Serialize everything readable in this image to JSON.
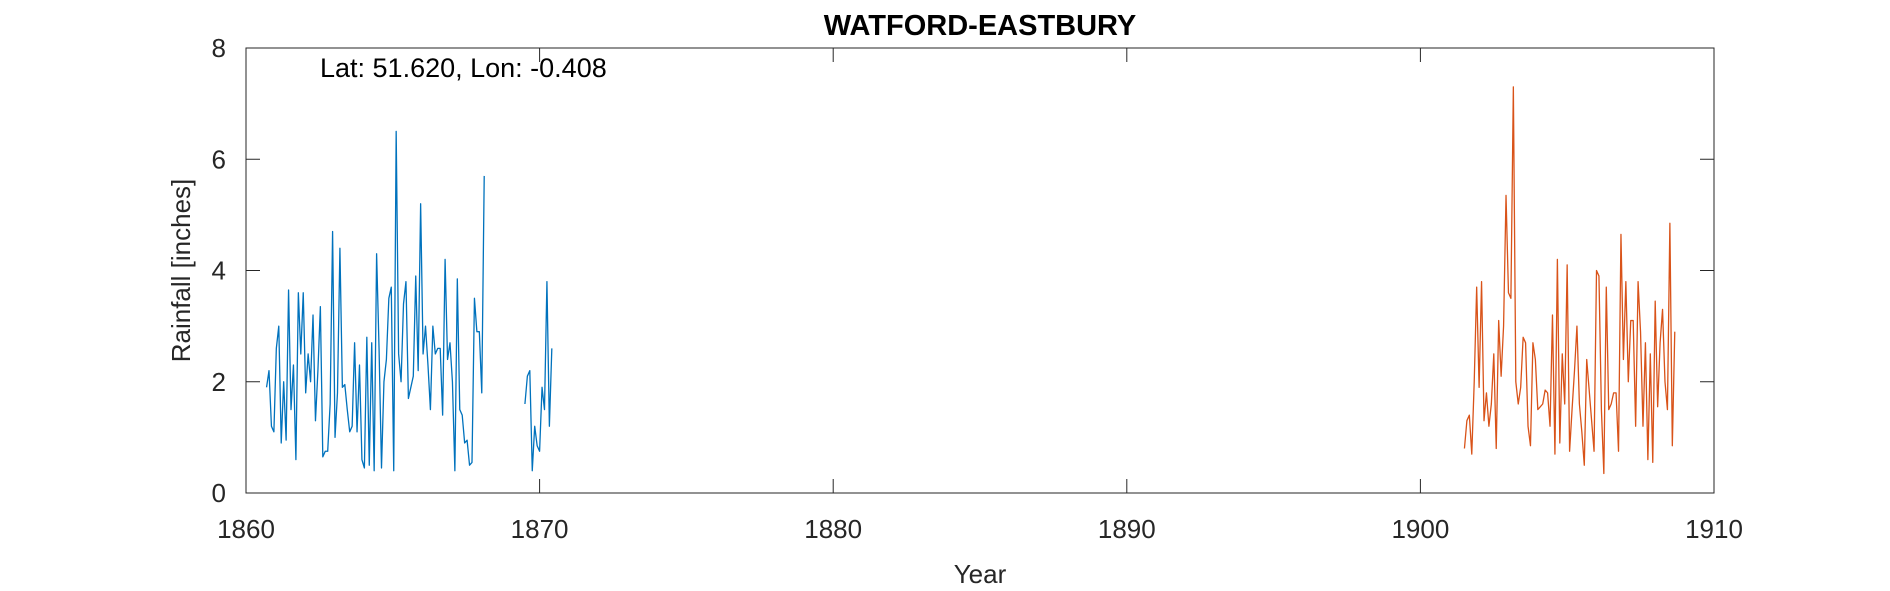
{
  "chart_data": {
    "type": "line",
    "title": "WATFORD-EASTBURY",
    "xlabel": "Year",
    "ylabel": "Rainfall [inches]",
    "annotation": "Lat: 51.620, Lon: -0.408",
    "xlim": [
      1860,
      1910
    ],
    "ylim": [
      0,
      8
    ],
    "xticks": [
      1860,
      1870,
      1880,
      1890,
      1900,
      1910
    ],
    "yticks": [
      0,
      2,
      4,
      6,
      8
    ],
    "grid": false,
    "box": true,
    "series": [
      {
        "color": "#0072BD",
        "segments": [
          {
            "start": 1860.7,
            "step": 0.0833,
            "values": [
              1.9,
              2.2,
              1.2,
              1.1,
              2.6,
              3.0,
              0.9,
              2.0,
              0.95,
              3.65,
              1.5,
              2.3,
              0.6,
              3.6,
              2.5,
              3.6,
              1.8,
              2.5,
              2.0,
              3.2,
              1.3,
              2.2,
              3.35,
              0.65,
              0.75,
              0.75,
              1.6,
              4.7,
              1.0,
              1.8,
              4.4,
              1.9,
              1.95,
              1.5,
              1.1,
              1.2,
              2.7,
              1.1,
              2.3,
              0.6,
              0.45,
              2.8,
              0.5,
              2.7,
              0.4,
              4.3,
              2.6,
              0.45,
              2.0,
              2.4,
              3.5,
              3.7,
              0.4,
              6.5,
              2.5,
              2.0,
              3.4,
              3.8,
              1.7,
              1.9,
              2.1,
              3.9,
              2.2,
              5.2,
              2.5,
              3.0,
              2.3,
              1.5,
              3.0,
              2.5,
              2.6,
              2.6,
              1.4,
              4.2,
              2.4,
              2.7,
              2.0,
              0.4,
              3.85,
              1.5,
              1.4,
              0.9,
              0.95,
              0.5,
              0.55,
              3.5,
              2.9,
              2.9,
              1.8,
              5.7
            ]
          },
          {
            "start": 1869.5,
            "step": 0.0833,
            "values": [
              1.6,
              2.1,
              2.2,
              0.4,
              1.2,
              0.85,
              0.75,
              1.9,
              1.5,
              3.8,
              1.2,
              2.6
            ]
          }
        ]
      },
      {
        "color": "#D95319",
        "segments": [
          {
            "start": 1901.5,
            "step": 0.0833,
            "values": [
              0.8,
              1.3,
              1.4,
              0.7,
              2.0,
              3.7,
              1.9,
              3.8,
              1.3,
              1.8,
              1.2,
              1.6,
              2.5,
              0.8,
              3.1,
              2.1,
              3.0,
              5.35,
              3.6,
              3.5,
              7.3,
              2.0,
              1.6,
              1.9,
              2.8,
              2.7,
              1.2,
              0.85,
              2.7,
              2.4,
              1.5,
              1.55,
              1.6,
              1.85,
              1.8,
              1.2,
              3.2,
              0.7,
              4.2,
              0.9,
              2.5,
              1.6,
              4.1,
              0.75,
              1.5,
              2.2,
              3.0,
              1.6,
              1.1,
              0.5,
              2.4,
              1.85,
              1.3,
              0.75,
              4.0,
              3.9,
              1.5,
              0.35,
              3.7,
              1.5,
              1.6,
              1.8,
              1.8,
              0.75,
              4.65,
              2.4,
              3.8,
              2.0,
              3.1,
              3.1,
              1.2,
              3.8,
              2.9,
              1.2,
              2.7,
              0.6,
              2.5,
              0.55,
              3.45,
              1.55,
              2.7,
              3.3,
              2.0,
              1.5,
              4.85,
              0.85,
              2.9
            ]
          }
        ]
      }
    ]
  }
}
